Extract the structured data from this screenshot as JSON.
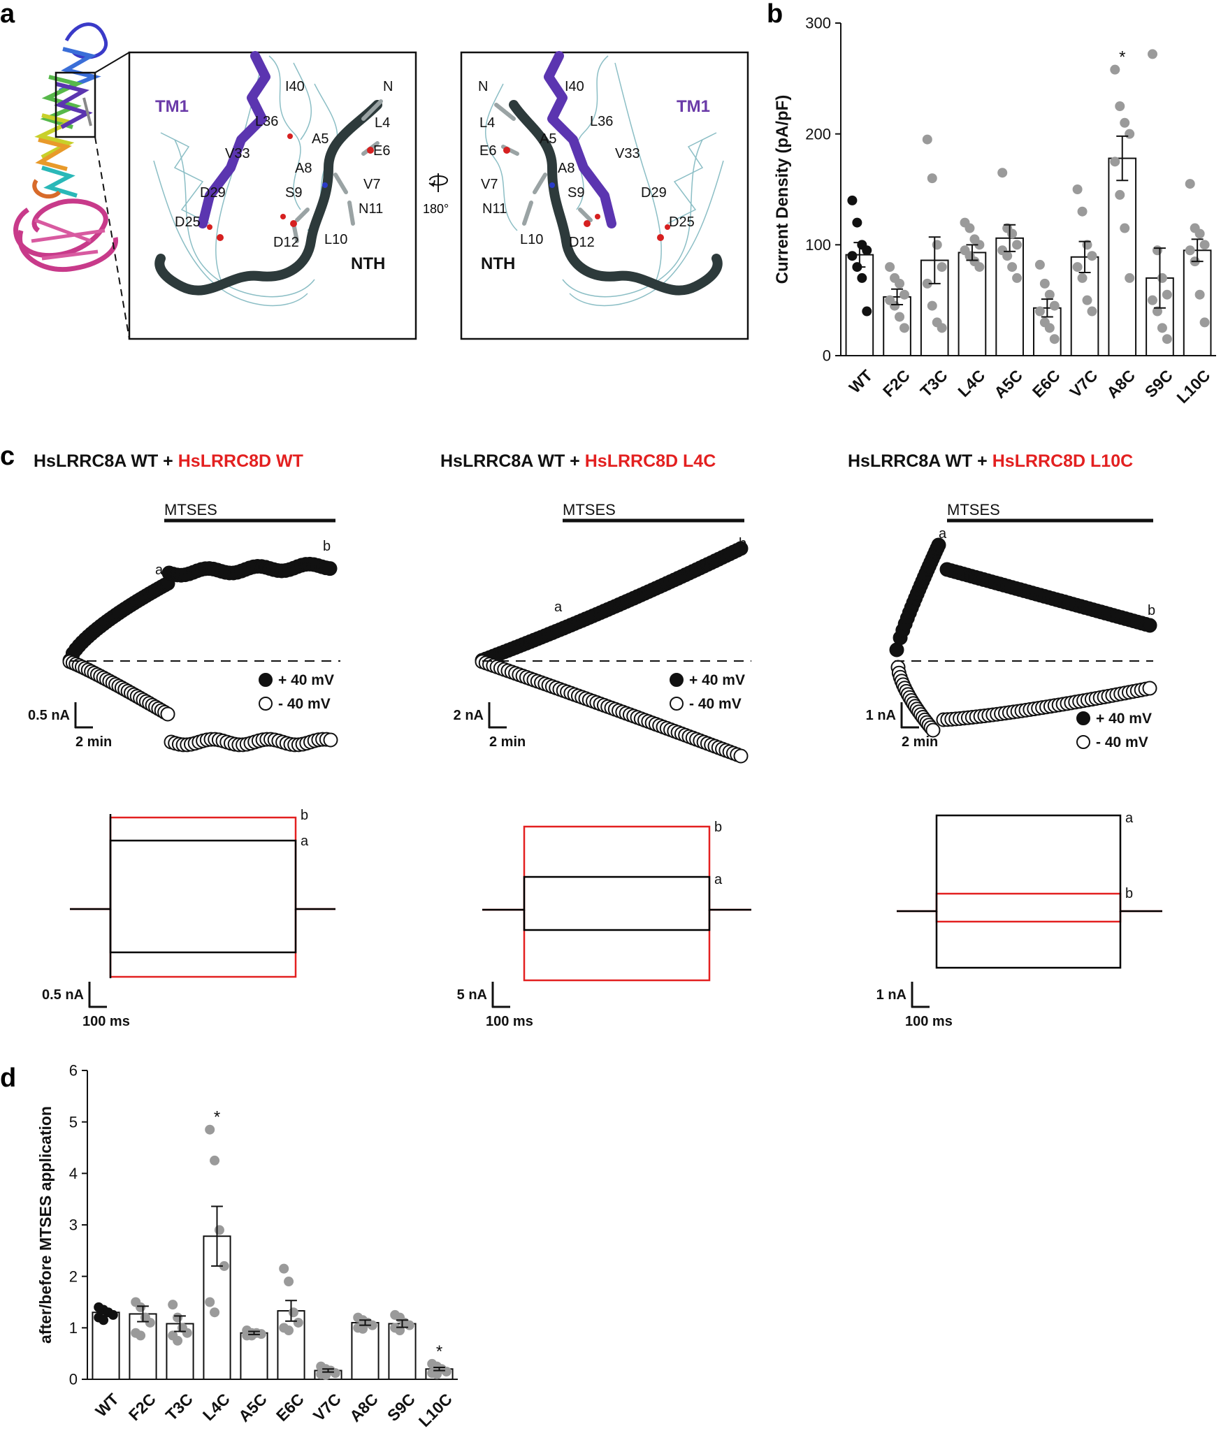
{
  "panels": {
    "a": {
      "letter": "a",
      "inset_left": {
        "labels": [
          {
            "text": "TM1",
            "color": "#6a3aa8"
          },
          {
            "text": "I40"
          },
          {
            "text": "L36"
          },
          {
            "text": "V33"
          },
          {
            "text": "D29"
          },
          {
            "text": "D25"
          },
          {
            "text": "N"
          },
          {
            "text": "L4"
          },
          {
            "text": "A5"
          },
          {
            "text": "E6"
          },
          {
            "text": "A8"
          },
          {
            "text": "V7"
          },
          {
            "text": "S9"
          },
          {
            "text": "N11"
          },
          {
            "text": "L10"
          },
          {
            "text": "D12"
          },
          {
            "text": "NTH"
          }
        ]
      },
      "inset_right": {
        "labels": [
          {
            "text": "TM1",
            "color": "#6a3aa8"
          },
          {
            "text": "I40"
          },
          {
            "text": "L36"
          },
          {
            "text": "V33"
          },
          {
            "text": "D29"
          },
          {
            "text": "D25"
          },
          {
            "text": "N"
          },
          {
            "text": "L4"
          },
          {
            "text": "A5"
          },
          {
            "text": "E6"
          },
          {
            "text": "A8"
          },
          {
            "text": "V7"
          },
          {
            "text": "S9"
          },
          {
            "text": "N11"
          },
          {
            "text": "L10"
          },
          {
            "text": "D12"
          },
          {
            "text": "NTH"
          }
        ]
      },
      "rotation_label": "180°",
      "colors": {
        "mesh": "#7fb7bf",
        "helix": "#5b35b0",
        "nth": "#2d3a3b",
        "oxygen": "#d62020",
        "nitrogen": "#2a3cc8"
      }
    },
    "b": {
      "letter": "b",
      "chart_data": {
        "type": "bar",
        "ylabel": "Current Density (pA/pF)",
        "ylim": [
          0,
          300
        ],
        "yticks": [
          0,
          100,
          200,
          300
        ],
        "significance": [
          {
            "category": "A8C",
            "mark": "*"
          }
        ],
        "categories": [
          "WT",
          "F2C",
          "T3C",
          "L4C",
          "A5C",
          "E6C",
          "V7C",
          "A8C",
          "S9C",
          "L10C"
        ],
        "means": [
          91,
          53,
          86,
          93,
          106,
          43,
          89,
          178,
          70,
          95
        ],
        "sem": [
          11,
          7,
          21,
          7,
          12,
          8,
          14,
          20,
          27,
          10
        ],
        "points": [
          [
            140,
            120,
            100,
            95,
            90,
            80,
            70,
            40
          ],
          [
            80,
            70,
            65,
            55,
            50,
            45,
            35,
            25
          ],
          [
            195,
            160,
            100,
            80,
            65,
            45,
            30,
            25
          ],
          [
            120,
            115,
            105,
            100,
            95,
            90,
            85,
            80
          ],
          [
            165,
            115,
            110,
            100,
            95,
            90,
            80,
            70
          ],
          [
            82,
            65,
            55,
            45,
            40,
            30,
            25,
            15
          ],
          [
            150,
            130,
            100,
            90,
            80,
            70,
            50,
            40
          ],
          [
            258,
            225,
            210,
            200,
            175,
            145,
            115,
            70
          ],
          [
            272,
            95,
            70,
            55,
            50,
            40,
            25,
            15
          ],
          [
            155,
            115,
            110,
            100,
            95,
            85,
            55,
            30
          ]
        ],
        "point_colors": {
          "WT": "#111111",
          "mutant": "#9a9a9a"
        }
      }
    },
    "c": {
      "letter": "c",
      "colors": {
        "before": "#000000",
        "after": "#e32020"
      },
      "columns": [
        {
          "title_black": "HsLRRC8A WT + ",
          "title_red": "HsLRRC8D WT",
          "drug": "MTSES",
          "legend_pos": "+ 40 mV",
          "legend_neg": "- 40 mV",
          "mark_a": "a",
          "mark_b": "b",
          "time_scale": {
            "current": "0.5 nA",
            "time": "2 min"
          },
          "trace_scale": {
            "current": "0.5 nA",
            "time": "100 ms"
          }
        },
        {
          "title_black": "HsLRRC8A WT + ",
          "title_red": "HsLRRC8D L4C",
          "drug": "MTSES",
          "legend_pos": "+ 40 mV",
          "legend_neg": "- 40 mV",
          "mark_a": "a",
          "mark_b": "b",
          "time_scale": {
            "current": "2 nA",
            "time": "2 min"
          },
          "trace_scale": {
            "current": "5 nA",
            "time": "100 ms"
          }
        },
        {
          "title_black": "HsLRRC8A WT + ",
          "title_red": "HsLRRC8D L10C",
          "drug": "MTSES",
          "legend_pos": "+ 40 mV",
          "legend_neg": "- 40 mV",
          "mark_a": "a",
          "mark_b": "b",
          "time_scale": {
            "current": "1 nA",
            "time": "2 min"
          },
          "trace_scale": {
            "current": "1 nA",
            "time": "100 ms"
          }
        }
      ]
    },
    "d": {
      "letter": "d",
      "chart_data": {
        "type": "bar",
        "ylabel": "after/before MTSES application",
        "ylim": [
          0,
          6
        ],
        "yticks": [
          0,
          1,
          2,
          3,
          4,
          5,
          6
        ],
        "significance": [
          {
            "category": "L4C",
            "mark": "*"
          },
          {
            "category": "L10C",
            "mark": "*"
          }
        ],
        "categories": [
          "WT",
          "F2C",
          "T3C",
          "L4C",
          "A5C",
          "E6C",
          "V7C",
          "A8C",
          "S9C",
          "L10C"
        ],
        "means": [
          1.3,
          1.27,
          1.08,
          2.78,
          0.9,
          1.33,
          0.17,
          1.1,
          1.08,
          0.2
        ],
        "sem": [
          0.06,
          0.15,
          0.15,
          0.58,
          0.03,
          0.2,
          0.03,
          0.05,
          0.07,
          0.03
        ],
        "points": [
          [
            1.4,
            1.35,
            1.3,
            1.25,
            1.2,
            1.15
          ],
          [
            1.5,
            1.4,
            1.2,
            1.1,
            0.9,
            0.85
          ],
          [
            1.45,
            1.2,
            1.0,
            0.9,
            0.85,
            0.75
          ],
          [
            4.85,
            4.25,
            2.9,
            2.2,
            1.5,
            1.3
          ],
          [
            0.95,
            0.9,
            0.9,
            0.88,
            0.85,
            0.85
          ],
          [
            2.15,
            1.9,
            1.3,
            1.1,
            1.0,
            0.95
          ],
          [
            0.25,
            0.2,
            0.17,
            0.12,
            0.1,
            0.08
          ],
          [
            1.2,
            1.15,
            1.1,
            1.05,
            1.0,
            0.98
          ],
          [
            1.25,
            1.2,
            1.1,
            1.05,
            1.0,
            0.95
          ],
          [
            0.3,
            0.25,
            0.2,
            0.15,
            0.12,
            0.1
          ]
        ],
        "point_colors": {
          "WT": "#111111",
          "mutant": "#9a9a9a"
        }
      }
    }
  }
}
